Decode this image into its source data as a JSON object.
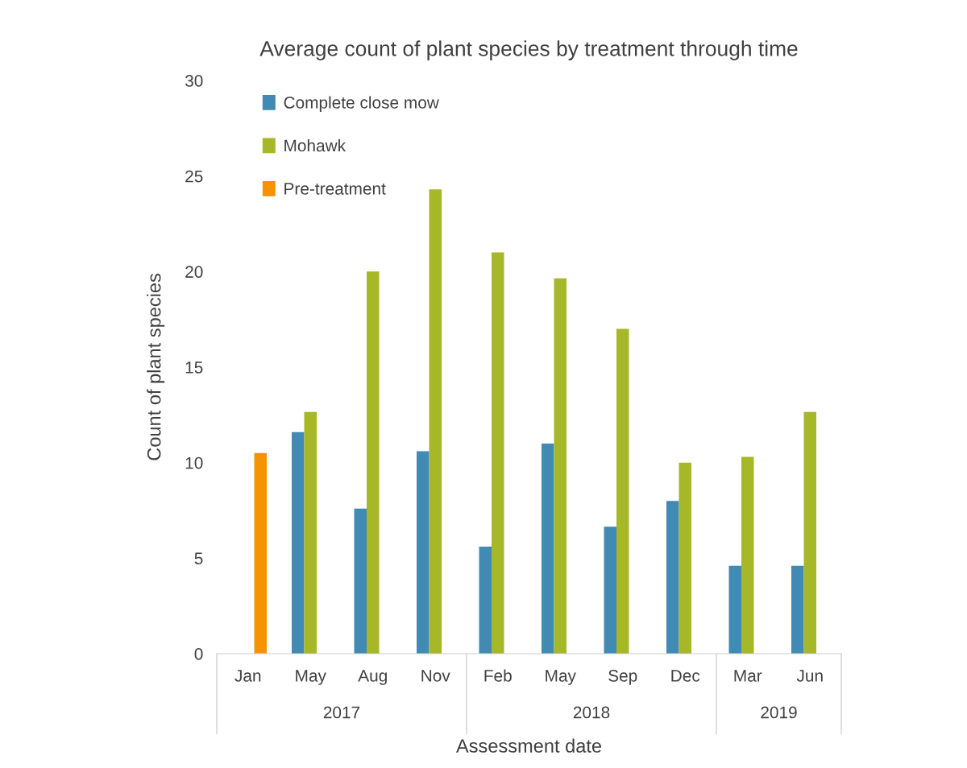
{
  "chart_data": {
    "type": "bar",
    "title": "Average count of plant species by treatment through time",
    "xlabel": "Assessment date",
    "ylabel": "Count of plant species",
    "categories": [
      "Jan",
      "May",
      "Aug",
      "Nov",
      "Feb",
      "May",
      "Sep",
      "Dec",
      "Mar",
      "Jun"
    ],
    "series": [
      {
        "name": "Complete close mow",
        "color": "#418ab3",
        "values": [
          null,
          11.6,
          7.6,
          10.6,
          5.6,
          11.0,
          6.65,
          8.0,
          4.6,
          4.6
        ]
      },
      {
        "name": "Mohawk",
        "color": "#a6b727",
        "values": [
          null,
          12.65,
          20.0,
          24.3,
          21.0,
          19.65,
          17.0,
          10.0,
          10.3,
          12.65
        ]
      },
      {
        "name": "Pre-treatment",
        "color": "#f69200",
        "values": [
          10.5,
          null,
          null,
          null,
          null,
          null,
          null,
          null,
          null,
          null
        ]
      }
    ],
    "annotations": [
      "2017",
      "2018",
      "2019"
    ],
    "ylim": [
      0,
      30
    ],
    "yticks": [
      0,
      5,
      10,
      15,
      20,
      25,
      30
    ],
    "grid": false,
    "legend": "top left"
  }
}
